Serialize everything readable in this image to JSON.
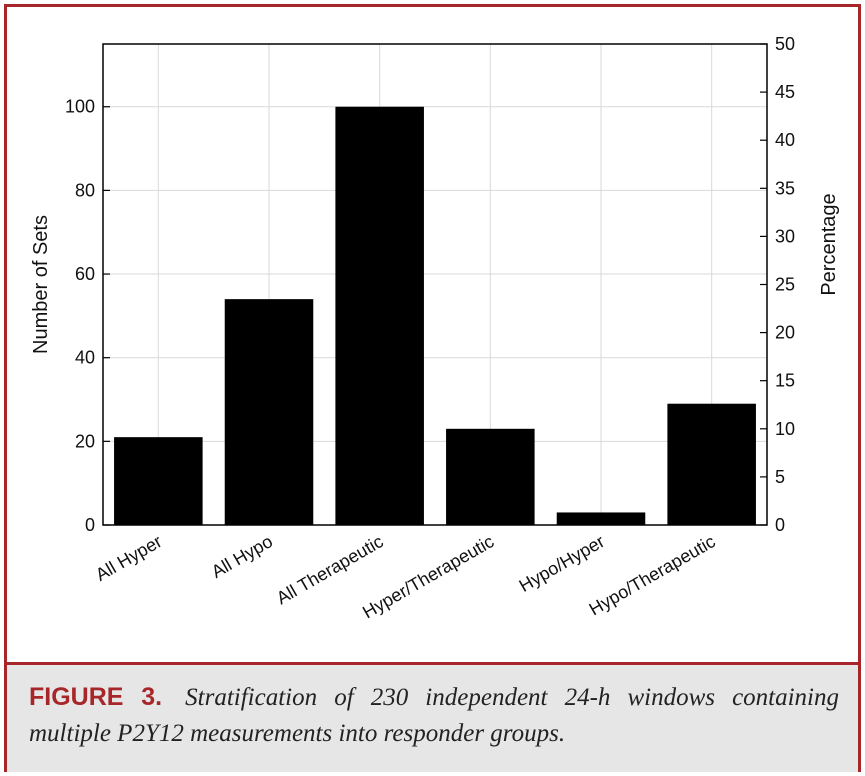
{
  "chart_data": {
    "type": "bar",
    "categories": [
      "All Hyper",
      "All Hypo",
      "All Therapeutic",
      "Hyper/Therapeutic",
      "Hypo/Hyper",
      "Hypo/Therapeutic"
    ],
    "values": [
      21,
      54,
      100,
      23,
      3,
      29
    ],
    "ylabel": "Number of Sets",
    "y2label": "Percentage",
    "ylim": [
      0,
      115
    ],
    "yticks": [
      0,
      20,
      40,
      60,
      80,
      100
    ],
    "y2lim": [
      0,
      50
    ],
    "y2ticks": [
      0,
      5,
      10,
      15,
      20,
      25,
      30,
      35,
      40,
      45,
      50
    ],
    "bar_color": "#000000",
    "grid": true
  },
  "caption": {
    "label": "FIGURE 3.",
    "text": "Stratification of 230 independent 24-h windows containing multiple P2Y12 measurements into responder groups."
  },
  "colors": {
    "frame": "#a6262a",
    "caption_bg": "#e6e6e6"
  }
}
